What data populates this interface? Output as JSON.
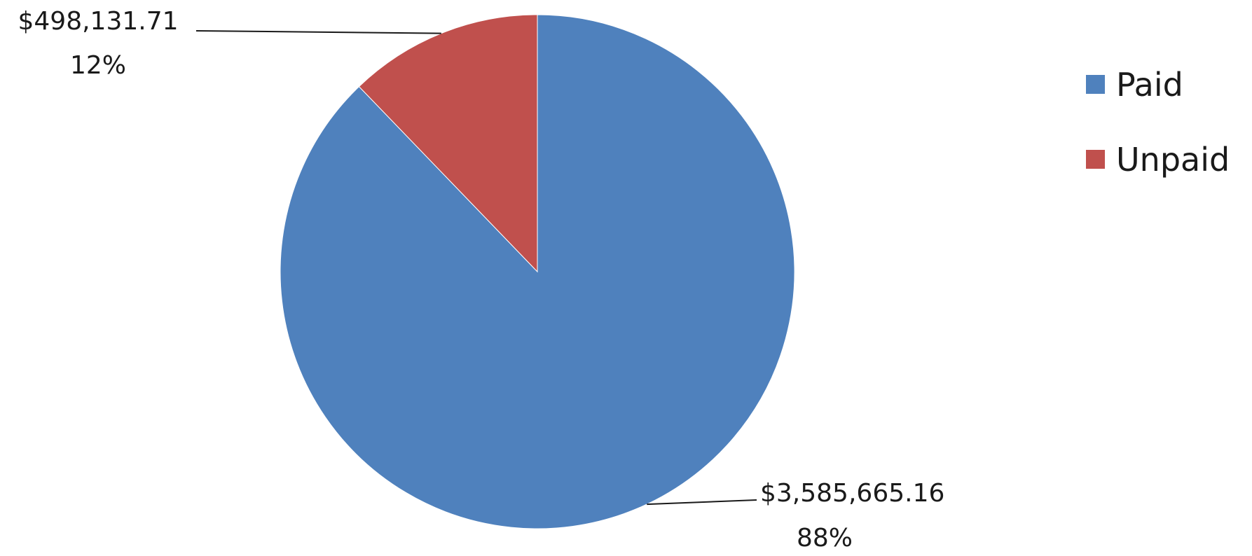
{
  "chart_data": {
    "type": "pie",
    "categories": [
      "Paid",
      "Unpaid"
    ],
    "values": [
      3585665.16,
      498131.71
    ],
    "value_labels": [
      "$3,585,665.16",
      "$498,131.71"
    ],
    "percent_labels": [
      "88%",
      "12%"
    ],
    "colors": [
      "#4f81bd",
      "#c0504d"
    ],
    "legend": {
      "placement": "right",
      "items": [
        {
          "label": "Paid",
          "color": "#4f81bd"
        },
        {
          "label": "Unpaid",
          "color": "#c0504d"
        }
      ]
    },
    "start_angle": "12 o'clock",
    "direction": "counterclockwise",
    "title": ""
  }
}
